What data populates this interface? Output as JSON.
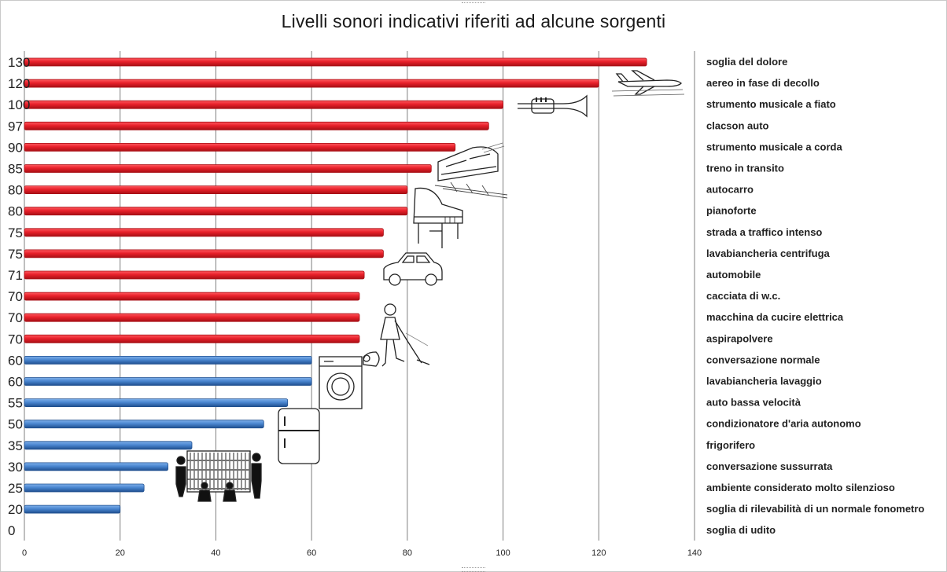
{
  "chart_data": {
    "type": "bar",
    "orientation": "horizontal",
    "title": "Livelli sonori indicativi riferiti ad alcune sorgenti",
    "xlim": [
      0,
      140
    ],
    "x_ticks": [
      "0",
      "20",
      "40",
      "60",
      "80",
      "100",
      "120",
      "140"
    ],
    "grid": true,
    "categories": [
      "soglia del dolore",
      "aereo in fase di decollo",
      "strumento musicale a fiato",
      "clacson auto",
      "strumento musicale a corda",
      "treno in transito",
      "autocarro",
      "pianoforte",
      "strada a traffico intenso",
      "lavabiancheria centrifuga",
      "automobile",
      "cacciata di w.c.",
      "macchina da cucire elettrica",
      "aspirapolvere",
      "conversazione normale",
      "lavabiancheria lavaggio",
      "auto bassa velocità",
      "condizionatore d'aria autonomo",
      "frigorifero",
      "conversazione sussurrata",
      "ambiente considerato molto silenzioso",
      "soglia di rilevabilità di un normale fonometro",
      "soglia di udito"
    ],
    "values": [
      130,
      120,
      100,
      97,
      90,
      85,
      80,
      80,
      75,
      75,
      71,
      70,
      70,
      70,
      60,
      60,
      55,
      50,
      35,
      30,
      25,
      20,
      0
    ],
    "value_labels": [
      "130",
      "120",
      "100",
      "97",
      "90",
      "85",
      "80",
      "80",
      "75",
      "75",
      "71",
      "70",
      "70",
      "70",
      "60",
      "60",
      "55",
      "50",
      "35",
      "30",
      "25",
      "20",
      "0"
    ],
    "colors": {
      "high": "#e8202a",
      "high_dark": "#a80f15",
      "low": "#4a86d0",
      "low_dark": "#1f4f8f"
    },
    "color_threshold": 65
  },
  "illustrations": [
    {
      "icon": "airplane-icon",
      "row": 1
    },
    {
      "icon": "trumpet-icon",
      "row": 2
    },
    {
      "icon": "train-icon",
      "row": 5
    },
    {
      "icon": "piano-icon",
      "row": 7
    },
    {
      "icon": "car-icon",
      "row": 10
    },
    {
      "icon": "vacuum-cleaner-person-icon",
      "row": 13
    },
    {
      "icon": "washing-machine-icon",
      "row": 15
    },
    {
      "icon": "refrigerator-icon",
      "row": 18
    },
    {
      "icon": "library-people-icon",
      "row": 20
    }
  ]
}
